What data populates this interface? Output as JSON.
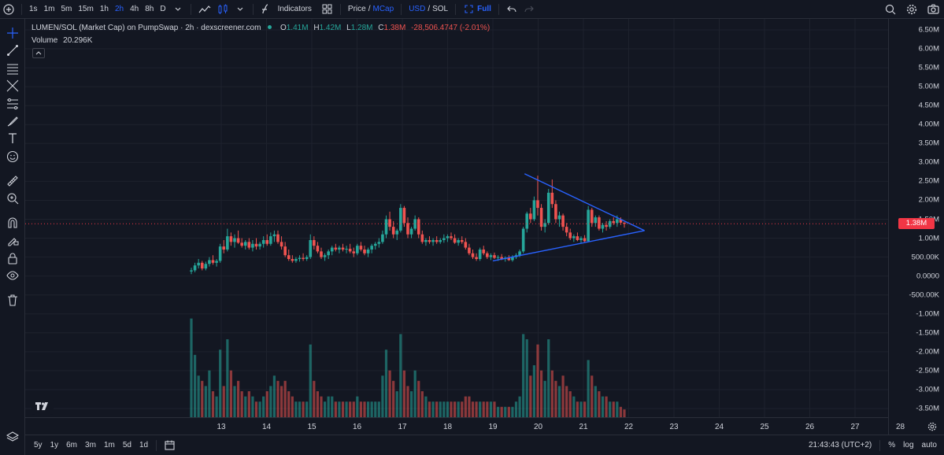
{
  "toolbar": {
    "intervals": [
      "1s",
      "1m",
      "5m",
      "15m",
      "1h",
      "2h",
      "4h",
      "8h",
      "D"
    ],
    "active_interval": "2h",
    "indicators_label": "Indicators",
    "price_label": "Price",
    "mcap_label": "MCap",
    "usd_label": "USD",
    "sol_label": "SOL",
    "slash": "/",
    "full_label": "Full"
  },
  "legend": {
    "title": "LUMEN/SOL (Market Cap) on PumpSwap · 2h · dexscreener.com",
    "o_label": "O",
    "o_value": "1.41M",
    "h_label": "H",
    "h_value": "1.42M",
    "l_label": "L",
    "l_value": "1.28M",
    "c_label": "C",
    "c_value": "1.38M",
    "change": "-28,506.4747 (-2.01%)",
    "volume_label": "Volume",
    "volume_value": "20.296K"
  },
  "bottom": {
    "ranges": [
      "5y",
      "1y",
      "6m",
      "3m",
      "1m",
      "5d",
      "1d"
    ],
    "clock": "21:43:43 (UTC+2)",
    "percent_label": "%",
    "log_label": "log",
    "auto_label": "auto"
  },
  "colors": {
    "up": "#26a69a",
    "down": "#ef5350",
    "accent": "#2962ff",
    "trendline": "#2962ff",
    "price_line": "#f23645"
  },
  "chart_data": {
    "type": "candlestick",
    "x_ticks": [
      "13",
      "14",
      "15",
      "16",
      "17",
      "18",
      "19",
      "20",
      "21",
      "22",
      "23",
      "24",
      "25",
      "26",
      "27",
      "28"
    ],
    "y_ticks": [
      "6.50M",
      "6.00M",
      "5.50M",
      "5.00M",
      "4.50M",
      "4.00M",
      "3.50M",
      "3.00M",
      "2.50M",
      "2.00M",
      "1.50M",
      "1.00M",
      "500.00K",
      "0.0000",
      "-500.00K",
      "-1.00M",
      "-1.50M",
      "-2.00M",
      "-2.50M",
      "-3.00M",
      "-3.50M"
    ],
    "ylim": [
      -3.7,
      6.75
    ],
    "current_price": "1.38M",
    "current_value": 1.38,
    "series": [
      {
        "o": 0.12,
        "h": 0.22,
        "l": 0.05,
        "c": 0.15,
        "v": 1.9
      },
      {
        "o": 0.15,
        "h": 0.35,
        "l": 0.1,
        "c": 0.28,
        "v": 1.2
      },
      {
        "o": 0.28,
        "h": 0.45,
        "l": 0.2,
        "c": 0.35,
        "v": 0.8
      },
      {
        "o": 0.35,
        "h": 0.4,
        "l": 0.15,
        "c": 0.2,
        "v": 0.7
      },
      {
        "o": 0.2,
        "h": 0.38,
        "l": 0.15,
        "c": 0.32,
        "v": 0.6
      },
      {
        "o": 0.32,
        "h": 0.5,
        "l": 0.25,
        "c": 0.42,
        "v": 0.9
      },
      {
        "o": 0.42,
        "h": 0.55,
        "l": 0.3,
        "c": 0.35,
        "v": 0.5
      },
      {
        "o": 0.35,
        "h": 0.45,
        "l": 0.25,
        "c": 0.4,
        "v": 0.4
      },
      {
        "o": 0.4,
        "h": 0.85,
        "l": 0.35,
        "c": 0.78,
        "v": 1.3
      },
      {
        "o": 0.78,
        "h": 0.95,
        "l": 0.6,
        "c": 0.7,
        "v": 0.6
      },
      {
        "o": 0.7,
        "h": 1.25,
        "l": 0.65,
        "c": 1.05,
        "v": 1.5
      },
      {
        "o": 1.05,
        "h": 1.15,
        "l": 0.8,
        "c": 0.9,
        "v": 0.9
      },
      {
        "o": 0.9,
        "h": 1.1,
        "l": 0.75,
        "c": 1.0,
        "v": 0.6
      },
      {
        "o": 1.0,
        "h": 1.2,
        "l": 0.85,
        "c": 0.88,
        "v": 0.7
      },
      {
        "o": 0.88,
        "h": 1.0,
        "l": 0.75,
        "c": 0.8,
        "v": 0.5
      },
      {
        "o": 0.8,
        "h": 0.95,
        "l": 0.7,
        "c": 0.9,
        "v": 0.4
      },
      {
        "o": 0.9,
        "h": 1.0,
        "l": 0.7,
        "c": 0.75,
        "v": 0.5
      },
      {
        "o": 0.75,
        "h": 0.95,
        "l": 0.65,
        "c": 0.85,
        "v": 0.4
      },
      {
        "o": 0.85,
        "h": 1.0,
        "l": 0.7,
        "c": 0.78,
        "v": 0.3
      },
      {
        "o": 0.78,
        "h": 0.9,
        "l": 0.7,
        "c": 0.85,
        "v": 0.3
      },
      {
        "o": 0.85,
        "h": 1.05,
        "l": 0.75,
        "c": 0.95,
        "v": 0.4
      },
      {
        "o": 0.95,
        "h": 1.1,
        "l": 0.8,
        "c": 0.85,
        "v": 0.5
      },
      {
        "o": 0.85,
        "h": 1.15,
        "l": 0.8,
        "c": 1.05,
        "v": 0.6
      },
      {
        "o": 1.05,
        "h": 1.2,
        "l": 0.9,
        "c": 1.1,
        "v": 0.8
      },
      {
        "o": 1.1,
        "h": 1.2,
        "l": 0.85,
        "c": 0.9,
        "v": 0.7
      },
      {
        "o": 0.9,
        "h": 1.05,
        "l": 0.7,
        "c": 0.78,
        "v": 0.6
      },
      {
        "o": 0.78,
        "h": 0.9,
        "l": 0.5,
        "c": 0.55,
        "v": 0.7
      },
      {
        "o": 0.55,
        "h": 0.7,
        "l": 0.4,
        "c": 0.45,
        "v": 0.5
      },
      {
        "o": 0.45,
        "h": 0.55,
        "l": 0.35,
        "c": 0.4,
        "v": 0.4
      },
      {
        "o": 0.4,
        "h": 0.5,
        "l": 0.35,
        "c": 0.45,
        "v": 0.3
      },
      {
        "o": 0.45,
        "h": 0.55,
        "l": 0.38,
        "c": 0.48,
        "v": 0.3
      },
      {
        "o": 0.48,
        "h": 0.6,
        "l": 0.4,
        "c": 0.45,
        "v": 0.3
      },
      {
        "o": 0.45,
        "h": 0.55,
        "l": 0.4,
        "c": 0.5,
        "v": 0.3
      },
      {
        "o": 0.5,
        "h": 1.1,
        "l": 0.45,
        "c": 0.95,
        "v": 1.4
      },
      {
        "o": 0.95,
        "h": 1.05,
        "l": 0.7,
        "c": 0.8,
        "v": 0.7
      },
      {
        "o": 0.8,
        "h": 0.9,
        "l": 0.6,
        "c": 0.65,
        "v": 0.5
      },
      {
        "o": 0.65,
        "h": 0.75,
        "l": 0.45,
        "c": 0.5,
        "v": 0.4
      },
      {
        "o": 0.5,
        "h": 0.6,
        "l": 0.4,
        "c": 0.55,
        "v": 0.3
      },
      {
        "o": 0.55,
        "h": 0.7,
        "l": 0.45,
        "c": 0.65,
        "v": 0.4
      },
      {
        "o": 0.65,
        "h": 0.8,
        "l": 0.55,
        "c": 0.75,
        "v": 0.4
      },
      {
        "o": 0.75,
        "h": 0.85,
        "l": 0.65,
        "c": 0.7,
        "v": 0.3
      },
      {
        "o": 0.7,
        "h": 0.8,
        "l": 0.6,
        "c": 0.75,
        "v": 0.3
      },
      {
        "o": 0.75,
        "h": 0.85,
        "l": 0.65,
        "c": 0.7,
        "v": 0.3
      },
      {
        "o": 0.7,
        "h": 0.8,
        "l": 0.6,
        "c": 0.72,
        "v": 0.3
      },
      {
        "o": 0.72,
        "h": 0.85,
        "l": 0.6,
        "c": 0.65,
        "v": 0.3
      },
      {
        "o": 0.65,
        "h": 0.75,
        "l": 0.5,
        "c": 0.6,
        "v": 0.3
      },
      {
        "o": 0.6,
        "h": 0.85,
        "l": 0.55,
        "c": 0.8,
        "v": 0.4
      },
      {
        "o": 0.8,
        "h": 0.9,
        "l": 0.65,
        "c": 0.7,
        "v": 0.3
      },
      {
        "o": 0.7,
        "h": 0.8,
        "l": 0.55,
        "c": 0.6,
        "v": 0.3
      },
      {
        "o": 0.6,
        "h": 0.75,
        "l": 0.5,
        "c": 0.7,
        "v": 0.3
      },
      {
        "o": 0.7,
        "h": 0.85,
        "l": 0.6,
        "c": 0.8,
        "v": 0.3
      },
      {
        "o": 0.8,
        "h": 0.9,
        "l": 0.7,
        "c": 0.85,
        "v": 0.3
      },
      {
        "o": 0.85,
        "h": 1.0,
        "l": 0.75,
        "c": 0.9,
        "v": 0.3
      },
      {
        "o": 0.9,
        "h": 1.2,
        "l": 0.85,
        "c": 1.1,
        "v": 0.8
      },
      {
        "o": 1.1,
        "h": 1.6,
        "l": 1.0,
        "c": 1.5,
        "v": 1.3
      },
      {
        "o": 1.5,
        "h": 1.7,
        "l": 1.2,
        "c": 1.3,
        "v": 0.9
      },
      {
        "o": 1.3,
        "h": 1.45,
        "l": 1.0,
        "c": 1.1,
        "v": 0.7
      },
      {
        "o": 1.1,
        "h": 1.25,
        "l": 0.95,
        "c": 1.2,
        "v": 0.5
      },
      {
        "o": 1.2,
        "h": 1.9,
        "l": 1.15,
        "c": 1.8,
        "v": 1.6
      },
      {
        "o": 1.8,
        "h": 1.85,
        "l": 1.3,
        "c": 1.4,
        "v": 0.9
      },
      {
        "o": 1.4,
        "h": 1.55,
        "l": 1.0,
        "c": 1.1,
        "v": 0.6
      },
      {
        "o": 1.1,
        "h": 1.3,
        "l": 1.0,
        "c": 1.25,
        "v": 0.5
      },
      {
        "o": 1.25,
        "h": 1.6,
        "l": 1.2,
        "c": 1.5,
        "v": 0.9
      },
      {
        "o": 1.5,
        "h": 1.55,
        "l": 1.0,
        "c": 1.1,
        "v": 0.7
      },
      {
        "o": 1.1,
        "h": 1.2,
        "l": 0.85,
        "c": 0.9,
        "v": 0.5
      },
      {
        "o": 0.9,
        "h": 1.0,
        "l": 0.8,
        "c": 0.95,
        "v": 0.4
      },
      {
        "o": 0.95,
        "h": 1.05,
        "l": 0.85,
        "c": 0.9,
        "v": 0.3
      },
      {
        "o": 0.9,
        "h": 1.0,
        "l": 0.8,
        "c": 0.95,
        "v": 0.3
      },
      {
        "o": 0.95,
        "h": 1.05,
        "l": 0.85,
        "c": 0.9,
        "v": 0.3
      },
      {
        "o": 0.9,
        "h": 1.0,
        "l": 0.85,
        "c": 0.95,
        "v": 0.3
      },
      {
        "o": 0.95,
        "h": 1.1,
        "l": 0.88,
        "c": 1.0,
        "v": 0.3
      },
      {
        "o": 1.0,
        "h": 1.1,
        "l": 0.9,
        "c": 1.05,
        "v": 0.3
      },
      {
        "o": 1.05,
        "h": 1.15,
        "l": 0.95,
        "c": 1.0,
        "v": 0.3
      },
      {
        "o": 1.0,
        "h": 1.1,
        "l": 0.85,
        "c": 0.88,
        "v": 0.3
      },
      {
        "o": 0.88,
        "h": 1.0,
        "l": 0.8,
        "c": 0.95,
        "v": 0.3
      },
      {
        "o": 0.95,
        "h": 1.05,
        "l": 0.85,
        "c": 0.9,
        "v": 0.3
      },
      {
        "o": 0.9,
        "h": 1.0,
        "l": 0.7,
        "c": 0.75,
        "v": 0.4
      },
      {
        "o": 0.75,
        "h": 0.85,
        "l": 0.55,
        "c": 0.6,
        "v": 0.4
      },
      {
        "o": 0.6,
        "h": 0.7,
        "l": 0.45,
        "c": 0.5,
        "v": 0.3
      },
      {
        "o": 0.5,
        "h": 0.6,
        "l": 0.4,
        "c": 0.45,
        "v": 0.3
      },
      {
        "o": 0.45,
        "h": 0.75,
        "l": 0.4,
        "c": 0.7,
        "v": 0.3
      },
      {
        "o": 0.7,
        "h": 0.8,
        "l": 0.55,
        "c": 0.6,
        "v": 0.3
      },
      {
        "o": 0.6,
        "h": 0.65,
        "l": 0.45,
        "c": 0.5,
        "v": 0.3
      },
      {
        "o": 0.5,
        "h": 0.6,
        "l": 0.42,
        "c": 0.55,
        "v": 0.3
      },
      {
        "o": 0.55,
        "h": 0.62,
        "l": 0.45,
        "c": 0.48,
        "v": 0.3
      },
      {
        "o": 0.48,
        "h": 0.55,
        "l": 0.4,
        "c": 0.5,
        "v": 0.2
      },
      {
        "o": 0.5,
        "h": 0.58,
        "l": 0.42,
        "c": 0.45,
        "v": 0.2
      },
      {
        "o": 0.45,
        "h": 0.52,
        "l": 0.38,
        "c": 0.48,
        "v": 0.2
      },
      {
        "o": 0.48,
        "h": 0.55,
        "l": 0.4,
        "c": 0.42,
        "v": 0.2
      },
      {
        "o": 0.42,
        "h": 0.55,
        "l": 0.38,
        "c": 0.5,
        "v": 0.2
      },
      {
        "o": 0.5,
        "h": 0.6,
        "l": 0.45,
        "c": 0.55,
        "v": 0.3
      },
      {
        "o": 0.55,
        "h": 0.7,
        "l": 0.5,
        "c": 0.65,
        "v": 0.4
      },
      {
        "o": 0.65,
        "h": 1.3,
        "l": 0.6,
        "c": 1.25,
        "v": 1.6
      },
      {
        "o": 1.25,
        "h": 1.7,
        "l": 1.15,
        "c": 1.65,
        "v": 1.5
      },
      {
        "o": 1.65,
        "h": 1.8,
        "l": 1.4,
        "c": 1.5,
        "v": 0.8
      },
      {
        "o": 1.5,
        "h": 2.1,
        "l": 1.45,
        "c": 2.0,
        "v": 1.0
      },
      {
        "o": 2.0,
        "h": 2.65,
        "l": 1.6,
        "c": 1.8,
        "v": 1.4
      },
      {
        "o": 1.8,
        "h": 1.9,
        "l": 1.2,
        "c": 1.3,
        "v": 0.9
      },
      {
        "o": 1.3,
        "h": 1.5,
        "l": 1.15,
        "c": 1.4,
        "v": 0.7
      },
      {
        "o": 1.4,
        "h": 2.3,
        "l": 1.35,
        "c": 2.2,
        "v": 1.5
      },
      {
        "o": 2.2,
        "h": 2.55,
        "l": 1.8,
        "c": 1.9,
        "v": 0.9
      },
      {
        "o": 1.9,
        "h": 2.0,
        "l": 1.4,
        "c": 1.5,
        "v": 0.7
      },
      {
        "o": 1.5,
        "h": 1.7,
        "l": 1.3,
        "c": 1.6,
        "v": 0.6
      },
      {
        "o": 1.6,
        "h": 1.65,
        "l": 1.2,
        "c": 1.3,
        "v": 0.8
      },
      {
        "o": 1.3,
        "h": 1.4,
        "l": 1.05,
        "c": 1.15,
        "v": 0.6
      },
      {
        "o": 1.15,
        "h": 1.25,
        "l": 0.95,
        "c": 1.0,
        "v": 0.5
      },
      {
        "o": 1.0,
        "h": 1.1,
        "l": 0.9,
        "c": 1.05,
        "v": 0.4
      },
      {
        "o": 1.05,
        "h": 1.15,
        "l": 0.92,
        "c": 0.95,
        "v": 0.3
      },
      {
        "o": 0.95,
        "h": 1.05,
        "l": 0.88,
        "c": 1.0,
        "v": 0.3
      },
      {
        "o": 1.0,
        "h": 1.08,
        "l": 0.9,
        "c": 0.92,
        "v": 0.3
      },
      {
        "o": 0.92,
        "h": 1.85,
        "l": 0.9,
        "c": 1.75,
        "v": 1.1
      },
      {
        "o": 1.75,
        "h": 1.8,
        "l": 1.3,
        "c": 1.4,
        "v": 0.8
      },
      {
        "o": 1.4,
        "h": 1.6,
        "l": 1.3,
        "c": 1.55,
        "v": 0.6
      },
      {
        "o": 1.55,
        "h": 1.6,
        "l": 1.2,
        "c": 1.25,
        "v": 0.5
      },
      {
        "o": 1.25,
        "h": 1.4,
        "l": 1.15,
        "c": 1.35,
        "v": 0.4
      },
      {
        "o": 1.35,
        "h": 1.45,
        "l": 1.2,
        "c": 1.3,
        "v": 0.4
      },
      {
        "o": 1.3,
        "h": 1.5,
        "l": 1.25,
        "c": 1.45,
        "v": 0.3
      },
      {
        "o": 1.45,
        "h": 1.55,
        "l": 1.35,
        "c": 1.4,
        "v": 0.3
      },
      {
        "o": 1.4,
        "h": 1.6,
        "l": 1.3,
        "c": 1.5,
        "v": 0.3
      },
      {
        "o": 1.5,
        "h": 1.55,
        "l": 1.35,
        "c": 1.41,
        "v": 0.2
      },
      {
        "o": 1.41,
        "h": 1.42,
        "l": 1.28,
        "c": 1.38,
        "v": 0.15
      }
    ],
    "trendlines": [
      {
        "from": {
          "x": "19.0",
          "y": 0.4
        },
        "to": {
          "x": "22.35",
          "y": 1.2
        }
      },
      {
        "from": {
          "x": "19.7",
          "y": 2.7
        },
        "to": {
          "x": "22.35",
          "y": 1.2
        }
      }
    ]
  }
}
